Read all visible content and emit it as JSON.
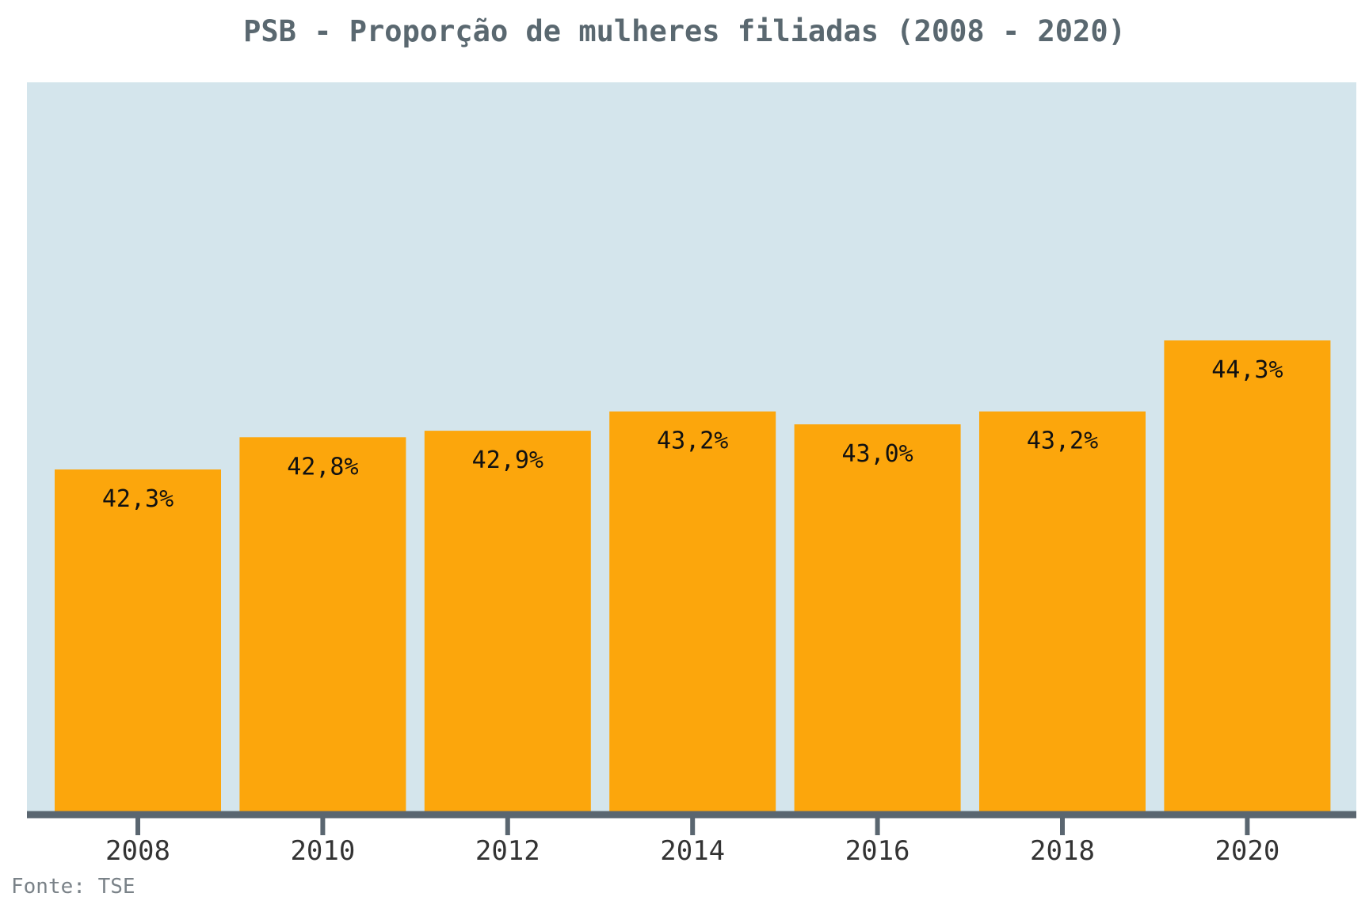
{
  "chart_data": {
    "type": "bar",
    "title": "PSB - Proporção de mulheres filiadas (2008 - 2020)",
    "xlabel": "",
    "ylabel": "",
    "categories": [
      "2008",
      "2010",
      "2012",
      "2014",
      "2016",
      "2018",
      "2020"
    ],
    "values": [
      42.3,
      42.8,
      42.9,
      43.2,
      43.0,
      43.2,
      44.3
    ],
    "value_labels": [
      "42,3%",
      "42,8%",
      "42,9%",
      "43,2%",
      "43,0%",
      "43,2%",
      "44,3%"
    ],
    "ylim": [
      37.0,
      48.3
    ],
    "grid": false,
    "legend": "none",
    "colors": {
      "bar": "#FCA60C",
      "plot_background": "#D4E5EC",
      "axis": "#5A6670",
      "title": "#5A6870",
      "tick_label": "#333333",
      "value_label": "#111111",
      "source": "#7A8288"
    }
  },
  "source": "Fonte: TSE"
}
